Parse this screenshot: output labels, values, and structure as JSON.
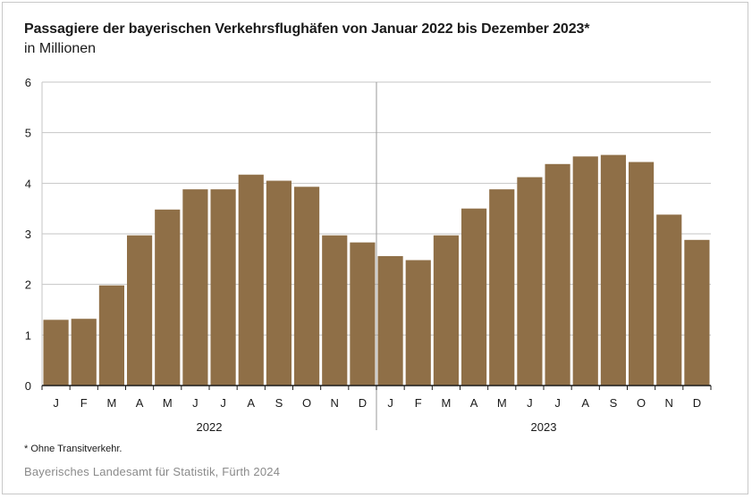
{
  "title": "Passagiere der bayerischen Verkehrsflughäfen von Januar 2022 bis Dezember 2023*",
  "subtitle": "in Millionen",
  "footnote": "* Ohne Transitverkehr.",
  "source": "Bayerisches Landesamt für Statistik, Fürth 2024",
  "colors": {
    "bar": "#8f6f47",
    "grid": "#c6c6c6",
    "axis": "#1a1a1a"
  },
  "chart_data": {
    "type": "bar",
    "title": "Passagiere der bayerischen Verkehrsflughäfen von Januar 2022 bis Dezember 2023*",
    "xlabel": "",
    "ylabel": "",
    "ylim": [
      0,
      6
    ],
    "yticks": [
      0,
      1,
      2,
      3,
      4,
      5,
      6
    ],
    "grid": true,
    "categories": [
      "J",
      "F",
      "M",
      "A",
      "M",
      "J",
      "J",
      "A",
      "S",
      "O",
      "N",
      "D",
      "J",
      "F",
      "M",
      "A",
      "M",
      "J",
      "J",
      "A",
      "S",
      "O",
      "N",
      "D"
    ],
    "groups": [
      {
        "label": "2022",
        "count": 12
      },
      {
        "label": "2023",
        "count": 12
      }
    ],
    "values": [
      1.3,
      1.32,
      1.98,
      2.97,
      3.48,
      3.88,
      3.88,
      4.17,
      4.05,
      3.93,
      2.97,
      2.83,
      2.56,
      2.48,
      2.97,
      3.5,
      3.88,
      4.12,
      4.38,
      4.53,
      4.56,
      4.42,
      3.38,
      2.88
    ]
  }
}
